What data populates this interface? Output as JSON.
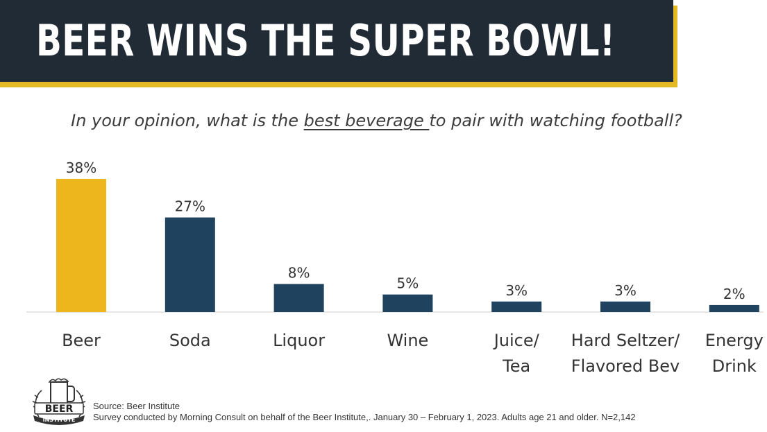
{
  "header": {
    "title": "BEER WINS THE SUPER BOWL!"
  },
  "question": {
    "before": "In your opinion, what is the ",
    "underlined": "best beverage ",
    "after": "to pair with watching football?"
  },
  "chart_data": {
    "type": "bar",
    "categories": [
      [
        "Beer"
      ],
      [
        "Soda"
      ],
      [
        "Liquor"
      ],
      [
        "Wine"
      ],
      [
        "Juice/",
        "Tea"
      ],
      [
        "Hard Seltzer/",
        "Flavored Bev"
      ],
      [
        "Energy",
        "Drink"
      ]
    ],
    "values": [
      38,
      27,
      8,
      5,
      3,
      3,
      2
    ],
    "value_labels": [
      "38%",
      "27%",
      "8%",
      "5%",
      "3%",
      "3%",
      "2%"
    ],
    "unit": "%",
    "ylim": [
      0,
      38
    ],
    "grid": false,
    "highlight_color": "#ecb61c",
    "bar_color": "#1f425f",
    "highlight_index": 0
  },
  "footer": {
    "logo_text": [
      "BEER",
      "INSTITUTE"
    ],
    "source": "Source: Beer Institute",
    "survey": "Survey conducted by Morning Consult on behalf of the Beer Institute,. January 30 – February 1, 2023. Adults age 21 and older. N=2,142"
  }
}
